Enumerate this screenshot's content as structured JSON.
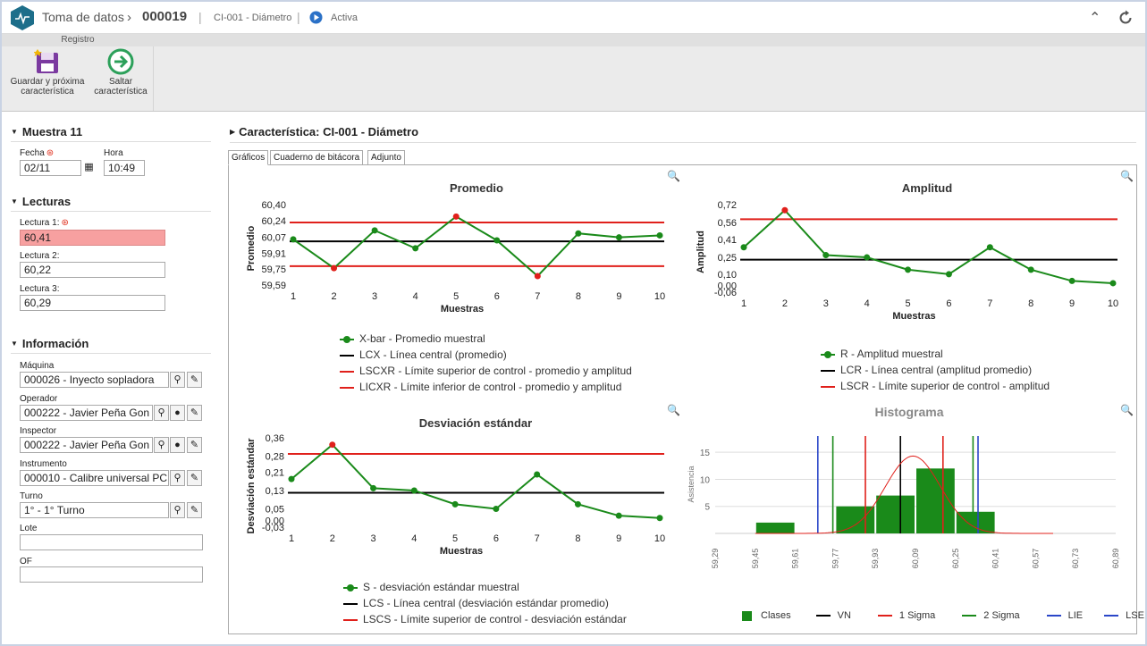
{
  "header": {
    "app_title": "Toma de datos",
    "record_id": "000019",
    "characteristic": "CI-001 - Diámetro",
    "status": "Activa"
  },
  "toolbar": {
    "group_label": "Registro",
    "save_next_label_1": "Guardar y próxima",
    "save_next_label_2": "característica",
    "skip_label_1": "Saltar",
    "skip_label_2": "característica"
  },
  "sample": {
    "title": "Muestra 11",
    "date_label": "Fecha",
    "date_value": "02/11",
    "time_label": "Hora",
    "time_value": "10:49"
  },
  "readings": {
    "title": "Lecturas",
    "items": [
      {
        "label": "Lectura 1:",
        "value": "60,41"
      },
      {
        "label": "Lectura 2:",
        "value": "60,22"
      },
      {
        "label": "Lectura 3:",
        "value": "60,29"
      }
    ]
  },
  "info": {
    "title": "Información",
    "machine_label": "Máquina",
    "machine_value": "000026 - Inyecto sopladora",
    "operator_label": "Operador",
    "operator_value": "000222 - Javier Peña Gon",
    "inspector_label": "Inspector",
    "inspector_value": "000222 - Javier Peña Gon",
    "instrument_label": "Instrumento",
    "instrument_value": "000010 - Calibre universal PC",
    "shift_label": "Turno",
    "shift_value": "1° - 1° Turno",
    "lot_label": "Lote",
    "lot_value": "",
    "of_label": "OF",
    "of_value": ""
  },
  "main": {
    "title": "Característica: CI-001 - Diámetro",
    "tabs": [
      "Gráficos",
      "Cuaderno de bitácora",
      "Adjunto"
    ]
  },
  "colors": {
    "series": "#1a8a1a",
    "limit": "#e0201b",
    "center": "#000000",
    "spec": "#2a46c8",
    "out": "#e0201b"
  },
  "chart_data": [
    {
      "type": "line",
      "title": "Promedio",
      "xlabel": "Muestras",
      "ylabel": "Promedio",
      "x": [
        1,
        2,
        3,
        4,
        5,
        6,
        7,
        8,
        9,
        10
      ],
      "y_ticks": [
        "60,40",
        "60,24",
        "60,07",
        "59,91",
        "59,75",
        "59,59"
      ],
      "ylim": [
        59.59,
        60.4
      ],
      "series": [
        {
          "name": "X-bar - Promedio muestral",
          "values": [
            60.05,
            59.76,
            60.14,
            59.96,
            60.28,
            60.04,
            59.68,
            60.11,
            60.07,
            60.09
          ]
        }
      ],
      "out_points": [
        2,
        5,
        7
      ],
      "lines": {
        "ucl": 60.22,
        "cl": 60.03,
        "lcl": 59.78
      },
      "legend": [
        "X-bar - Promedio muestral",
        "LCX - Línea central (promedio)",
        "LSCXR - Límite superior de control - promedio y amplitud",
        "LICXR - Límite inferior de control - promedio y amplitud"
      ]
    },
    {
      "type": "line",
      "title": "Amplitud",
      "xlabel": "Muestras",
      "ylabel": "Amplitud",
      "x": [
        1,
        2,
        3,
        4,
        5,
        6,
        7,
        8,
        9,
        10
      ],
      "y_ticks": [
        "0,72",
        "0,56",
        "0,41",
        "0,25",
        "0,10",
        "0,00",
        "-0,06"
      ],
      "ylim": [
        -0.06,
        0.72
      ],
      "series": [
        {
          "name": "R - Amplitud muestral",
          "values": [
            0.34,
            0.67,
            0.27,
            0.25,
            0.14,
            0.1,
            0.34,
            0.14,
            0.04,
            0.02
          ]
        }
      ],
      "out_points": [
        2
      ],
      "lines": {
        "ucl": 0.59,
        "cl": 0.23
      },
      "legend": [
        "R - Amplitud muestral",
        "LCR - Línea central (amplitud promedio)",
        "LSCR - Límite superior de control - amplitud"
      ]
    },
    {
      "type": "line",
      "title": "Desviación estándar",
      "xlabel": "Muestras",
      "ylabel": "Desviación estándar",
      "x": [
        1,
        2,
        3,
        4,
        5,
        6,
        7,
        8,
        9,
        10
      ],
      "y_ticks": [
        "0,36",
        "0,28",
        "0,21",
        "0,13",
        "0,05",
        "0,00",
        "-0,03"
      ],
      "ylim": [
        -0.03,
        0.36
      ],
      "series": [
        {
          "name": "S - desviación estándar muestral",
          "values": [
            0.18,
            0.33,
            0.14,
            0.13,
            0.07,
            0.05,
            0.2,
            0.07,
            0.02,
            0.01
          ]
        }
      ],
      "out_points": [
        2
      ],
      "lines": {
        "ucl": 0.29,
        "cl": 0.12
      },
      "legend": [
        "S - desviación estándar muestral",
        "LCS - Línea central (desviación estándar promedio)",
        "LSCS - Límite superior de control - desviación estándar"
      ]
    },
    {
      "type": "bar",
      "title": "Histograma",
      "ylabel": "Asistencia",
      "x_ticks": [
        "59,29",
        "59,45",
        "59,61",
        "59,77",
        "59,93",
        "60,09",
        "60,25",
        "60,41",
        "60,57",
        "60,73",
        "60,89"
      ],
      "xlim": [
        59.29,
        60.89
      ],
      "y_ticks": [
        "15",
        "10",
        "5"
      ],
      "ylim": [
        0,
        18
      ],
      "bins": [
        {
          "from": 59.45,
          "to": 59.61,
          "count": 2
        },
        {
          "from": 59.77,
          "to": 59.93,
          "count": 5
        },
        {
          "from": 59.93,
          "to": 60.09,
          "count": 7
        },
        {
          "from": 60.09,
          "to": 60.25,
          "count": 12
        },
        {
          "from": 60.25,
          "to": 60.41,
          "count": 4
        }
      ],
      "lines": {
        "vn": 60.03,
        "sigma1": [
          59.89,
          60.2
        ],
        "sigma2": [
          59.76,
          60.32
        ],
        "lie": 59.7,
        "lse": 60.34
      },
      "legend": [
        "Clases",
        "VN",
        "1 Sigma",
        "2 Sigma",
        "LIE",
        "LSE"
      ]
    }
  ]
}
